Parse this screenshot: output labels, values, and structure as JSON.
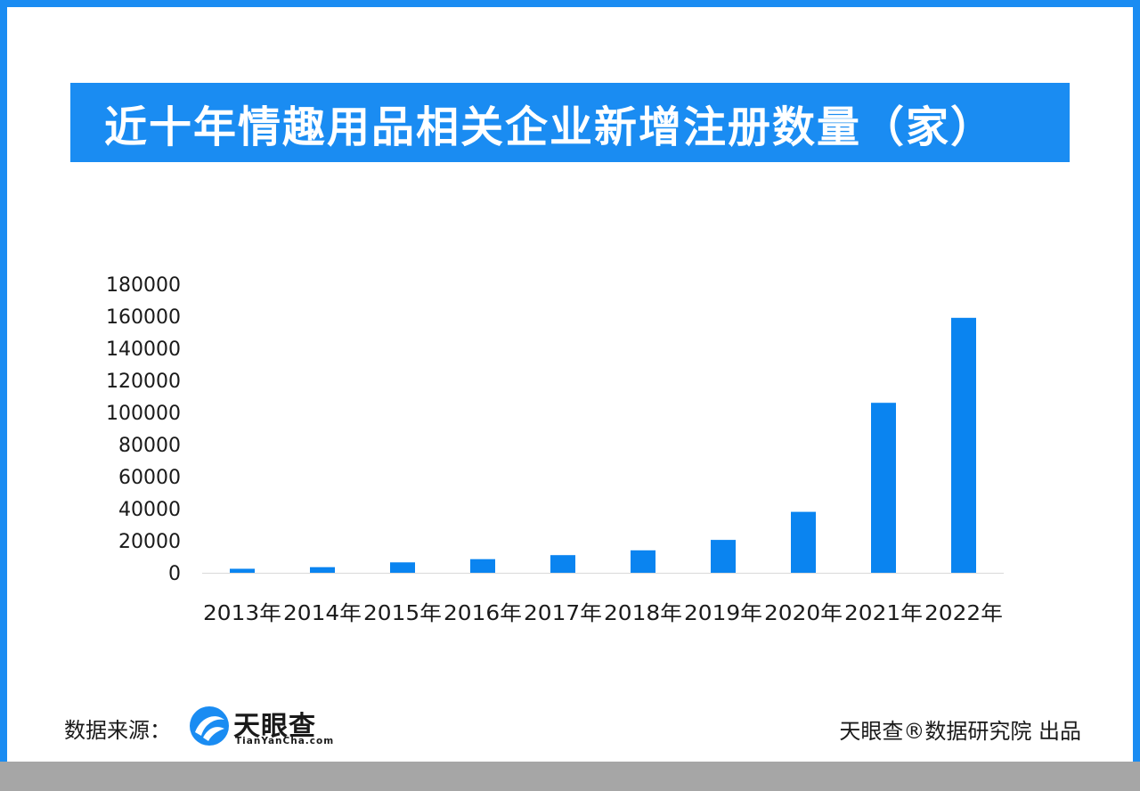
{
  "title": "近十年情趣用品相关企业新增注册数量（家）",
  "footer": {
    "source_label": "数据来源：",
    "logo_name": "天眼查",
    "logo_url": "TianYanCha.com",
    "credit": "天眼查®数据研究院 出品"
  },
  "colors": {
    "accent": "#1a8cf2",
    "bar": "#0a84f0",
    "bottom_bar": "#a6a6a6"
  },
  "chart_data": {
    "type": "bar",
    "title": "近十年情趣用品相关企业新增注册数量（家）",
    "xlabel": "",
    "ylabel": "",
    "categories": [
      "2013年",
      "2014年",
      "2015年",
      "2016年",
      "2017年",
      "2018年",
      "2019年",
      "2020年",
      "2021年",
      "2022年"
    ],
    "values": [
      2500,
      3500,
      6500,
      8500,
      11000,
      14000,
      20500,
      38000,
      106000,
      159000
    ],
    "yticks": [
      0,
      20000,
      40000,
      60000,
      80000,
      100000,
      120000,
      140000,
      160000,
      180000
    ],
    "ylim": [
      0,
      180000
    ],
    "grid": false,
    "legend": "none"
  }
}
